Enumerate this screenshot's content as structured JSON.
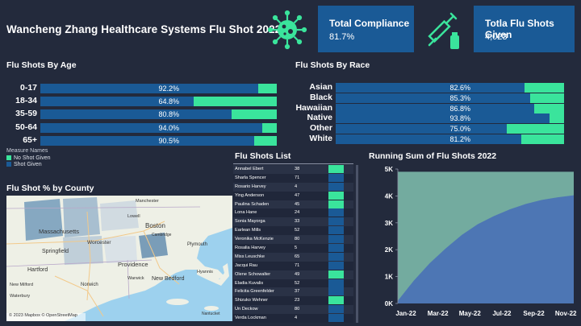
{
  "title": "Wancheng Zhang Healthcare Systems Flu Shot 2022",
  "kpis": {
    "compliance_label": "Total Compliance",
    "compliance_value": "81.7%",
    "total_label": "Totla Flu Shots Given",
    "total_value": "4,023"
  },
  "icons": {
    "virus": "virus-icon",
    "syringe": "syringe-icon"
  },
  "colors": {
    "shot_given": "#1a5a96",
    "no_shot": "#3ae49c",
    "background": "#232a3c"
  },
  "age": {
    "title": "Flu Shots By Age",
    "rows": [
      {
        "label": "0-17",
        "pct": "92.2%",
        "value": 92.2
      },
      {
        "label": "18-34",
        "pct": "64.8%",
        "value": 64.8
      },
      {
        "label": "35-59",
        "pct": "80.8%",
        "value": 80.8
      },
      {
        "label": "50-64",
        "pct": "94.0%",
        "value": 94.0
      },
      {
        "label": "65+",
        "pct": "90.5%",
        "value": 90.5
      }
    ]
  },
  "race": {
    "title": "Flu Shots By Race",
    "rows": [
      {
        "label": "Asian",
        "pct": "82.6%",
        "value": 82.6
      },
      {
        "label": "Black",
        "pct": "85.3%",
        "value": 85.3
      },
      {
        "label": "Hawaiian",
        "pct": "86.8%",
        "value": 86.8
      },
      {
        "label": "Native",
        "pct": "93.8%",
        "value": 93.8
      },
      {
        "label": "Other",
        "pct": "75.0%",
        "value": 75.0
      },
      {
        "label": "White",
        "pct": "81.2%",
        "value": 81.2
      }
    ]
  },
  "legend": {
    "title": "Measure Names",
    "items": [
      "No Shot Given",
      "Shot Given"
    ]
  },
  "list": {
    "title": "Flu Shots List",
    "rows": [
      {
        "name": "Annabel Ebert",
        "age": "38",
        "status": "no"
      },
      {
        "name": "Sharla Spencer",
        "age": "71",
        "status": "yes"
      },
      {
        "name": "Rosario Harvey",
        "age": "4",
        "status": "yes"
      },
      {
        "name": "Ying Anderson",
        "age": "47",
        "status": "no"
      },
      {
        "name": "Paulina Schaden",
        "age": "45",
        "status": "no"
      },
      {
        "name": "Lona Hane",
        "age": "24",
        "status": "yes"
      },
      {
        "name": "Sonia Mayorga",
        "age": "33",
        "status": "yes"
      },
      {
        "name": "Earlean Mills",
        "age": "52",
        "status": "yes"
      },
      {
        "name": "Veronika McKenzie",
        "age": "80",
        "status": "yes"
      },
      {
        "name": "Rosalia Harvey",
        "age": "5",
        "status": "yes"
      },
      {
        "name": "Miss Leuschke",
        "age": "65",
        "status": "yes"
      },
      {
        "name": "Jacqui Rau",
        "age": "71",
        "status": "yes"
      },
      {
        "name": "Olene Schowalter",
        "age": "49",
        "status": "no"
      },
      {
        "name": "Eladia Kuvalis",
        "age": "52",
        "status": "yes"
      },
      {
        "name": "Felicita Greenfelder",
        "age": "37",
        "status": "yes"
      },
      {
        "name": "Shizuko Wehner",
        "age": "23",
        "status": "no"
      },
      {
        "name": "Un Deckow",
        "age": "80",
        "status": "yes"
      },
      {
        "name": "Verda Lockman",
        "age": "4",
        "status": "yes"
      }
    ]
  },
  "map": {
    "title": "Flu Shot % by County",
    "attribution": "© 2023 Mapbox © OpenStreetMap",
    "places": [
      "Boston",
      "Worcester",
      "Massachusetts",
      "Springfield",
      "Hartford",
      "Providence",
      "New Bedford",
      "Cambridge",
      "Lowell",
      "Plymouth",
      "New Milford",
      "Waterbury",
      "Norwich",
      "Warwick",
      "Nantucket",
      "Hyannis",
      "Manchester"
    ]
  },
  "chart_data": {
    "type": "area",
    "title": "Running Sum of Flu Shots 2022",
    "x_ticks": [
      "Jan-22",
      "Mar-22",
      "May-22",
      "Jul-22",
      "Sep-22",
      "Nov-22"
    ],
    "y_ticks": [
      "0K",
      "1K",
      "2K",
      "3K",
      "4K",
      "5K"
    ],
    "ylim": [
      0,
      5000
    ],
    "x": [
      "Jan-22",
      "Feb-22",
      "Mar-22",
      "Apr-22",
      "May-22",
      "Jun-22",
      "Jul-22",
      "Aug-22",
      "Sep-22",
      "Oct-22",
      "Nov-22",
      "Dec-22"
    ],
    "series": [
      {
        "values": [
          100,
          850,
          1500,
          2050,
          2550,
          2950,
          3250,
          3500,
          3700,
          3850,
          3950,
          4023
        ]
      },
      {
        "values": [
          4900,
          4900,
          4900,
          4900,
          4900,
          4900,
          4900,
          4900,
          4900,
          4900,
          4900,
          4900
        ]
      }
    ]
  }
}
